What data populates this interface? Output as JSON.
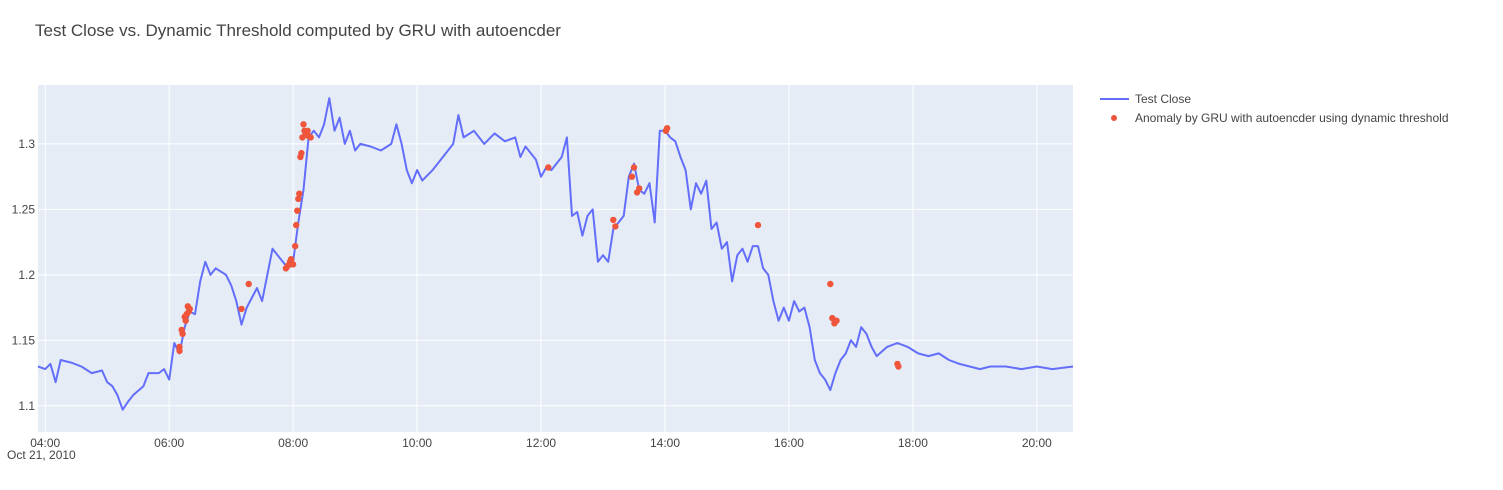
{
  "chart_data": {
    "type": "line",
    "title": "Test Close vs. Dynamic Threshold computed by GRU with autoencder",
    "xlabel": "",
    "ylabel": "",
    "x_axis": {
      "ticks": [
        "04:00",
        "06:00",
        "08:00",
        "10:00",
        "12:00",
        "14:00",
        "16:00",
        "18:00",
        "20:00"
      ],
      "date_label": "Oct 21, 2010",
      "range": [
        "03:53",
        "20:35"
      ]
    },
    "y_axis": {
      "ticks": [
        "1.1",
        "1.15",
        "1.2",
        "1.25",
        "1.3"
      ],
      "range": [
        1.08,
        1.345
      ]
    },
    "grid": true,
    "legend": {
      "placement": "top-right"
    },
    "series": [
      {
        "name": "Test Close",
        "kind": "line",
        "color": "#636efa",
        "points": [
          [
            "03:53",
            1.13
          ],
          [
            "04:00",
            1.128
          ],
          [
            "04:05",
            1.132
          ],
          [
            "04:10",
            1.118
          ],
          [
            "04:15",
            1.135
          ],
          [
            "04:25",
            1.133
          ],
          [
            "04:35",
            1.13
          ],
          [
            "04:45",
            1.125
          ],
          [
            "04:55",
            1.127
          ],
          [
            "05:00",
            1.118
          ],
          [
            "05:05",
            1.115
          ],
          [
            "05:10",
            1.108
          ],
          [
            "05:15",
            1.097
          ],
          [
            "05:20",
            1.103
          ],
          [
            "05:25",
            1.108
          ],
          [
            "05:35",
            1.115
          ],
          [
            "05:40",
            1.125
          ],
          [
            "05:50",
            1.125
          ],
          [
            "05:55",
            1.128
          ],
          [
            "06:00",
            1.12
          ],
          [
            "06:05",
            1.148
          ],
          [
            "06:10",
            1.14
          ],
          [
            "06:15",
            1.16
          ],
          [
            "06:20",
            1.172
          ],
          [
            "06:25",
            1.17
          ],
          [
            "06:30",
            1.195
          ],
          [
            "06:35",
            1.21
          ],
          [
            "06:40",
            1.2
          ],
          [
            "06:45",
            1.205
          ],
          [
            "06:55",
            1.2
          ],
          [
            "07:00",
            1.192
          ],
          [
            "07:05",
            1.18
          ],
          [
            "07:10",
            1.162
          ],
          [
            "07:15",
            1.175
          ],
          [
            "07:25",
            1.19
          ],
          [
            "07:30",
            1.18
          ],
          [
            "07:35",
            1.2
          ],
          [
            "07:40",
            1.22
          ],
          [
            "07:45",
            1.215
          ],
          [
            "07:55",
            1.205
          ],
          [
            "08:00",
            1.21
          ],
          [
            "08:05",
            1.24
          ],
          [
            "08:10",
            1.265
          ],
          [
            "08:15",
            1.305
          ],
          [
            "08:20",
            1.31
          ],
          [
            "08:25",
            1.305
          ],
          [
            "08:30",
            1.315
          ],
          [
            "08:35",
            1.335
          ],
          [
            "08:40",
            1.31
          ],
          [
            "08:45",
            1.32
          ],
          [
            "08:50",
            1.3
          ],
          [
            "08:55",
            1.31
          ],
          [
            "09:00",
            1.295
          ],
          [
            "09:05",
            1.3
          ],
          [
            "09:15",
            1.298
          ],
          [
            "09:25",
            1.295
          ],
          [
            "09:35",
            1.3
          ],
          [
            "09:40",
            1.315
          ],
          [
            "09:45",
            1.3
          ],
          [
            "09:50",
            1.28
          ],
          [
            "09:55",
            1.27
          ],
          [
            "10:00",
            1.28
          ],
          [
            "10:05",
            1.272
          ],
          [
            "10:15",
            1.28
          ],
          [
            "10:25",
            1.29
          ],
          [
            "10:35",
            1.3
          ],
          [
            "10:40",
            1.322
          ],
          [
            "10:45",
            1.305
          ],
          [
            "10:55",
            1.31
          ],
          [
            "11:05",
            1.3
          ],
          [
            "11:15",
            1.308
          ],
          [
            "11:25",
            1.302
          ],
          [
            "11:35",
            1.305
          ],
          [
            "11:40",
            1.29
          ],
          [
            "11:45",
            1.298
          ],
          [
            "11:55",
            1.288
          ],
          [
            "12:00",
            1.275
          ],
          [
            "12:05",
            1.282
          ],
          [
            "12:10",
            1.28
          ],
          [
            "12:15",
            1.285
          ],
          [
            "12:20",
            1.29
          ],
          [
            "12:25",
            1.305
          ],
          [
            "12:30",
            1.245
          ],
          [
            "12:35",
            1.248
          ],
          [
            "12:40",
            1.23
          ],
          [
            "12:45",
            1.245
          ],
          [
            "12:50",
            1.25
          ],
          [
            "12:55",
            1.21
          ],
          [
            "13:00",
            1.215
          ],
          [
            "13:05",
            1.21
          ],
          [
            "13:10",
            1.235
          ],
          [
            "13:15",
            1.24
          ],
          [
            "13:20",
            1.245
          ],
          [
            "13:25",
            1.275
          ],
          [
            "13:30",
            1.285
          ],
          [
            "13:35",
            1.265
          ],
          [
            "13:40",
            1.262
          ],
          [
            "13:45",
            1.27
          ],
          [
            "13:50",
            1.24
          ],
          [
            "13:55",
            1.31
          ],
          [
            "14:00",
            1.31
          ],
          [
            "14:05",
            1.305
          ],
          [
            "14:10",
            1.302
          ],
          [
            "14:15",
            1.29
          ],
          [
            "14:20",
            1.28
          ],
          [
            "14:25",
            1.25
          ],
          [
            "14:30",
            1.27
          ],
          [
            "14:35",
            1.262
          ],
          [
            "14:40",
            1.272
          ],
          [
            "14:45",
            1.235
          ],
          [
            "14:50",
            1.24
          ],
          [
            "14:55",
            1.22
          ],
          [
            "15:00",
            1.225
          ],
          [
            "15:05",
            1.195
          ],
          [
            "15:10",
            1.215
          ],
          [
            "15:15",
            1.22
          ],
          [
            "15:20",
            1.21
          ],
          [
            "15:25",
            1.222
          ],
          [
            "15:30",
            1.222
          ],
          [
            "15:35",
            1.205
          ],
          [
            "15:40",
            1.2
          ],
          [
            "15:45",
            1.18
          ],
          [
            "15:50",
            1.165
          ],
          [
            "15:55",
            1.175
          ],
          [
            "16:00",
            1.165
          ],
          [
            "16:05",
            1.18
          ],
          [
            "16:10",
            1.172
          ],
          [
            "16:15",
            1.175
          ],
          [
            "16:20",
            1.16
          ],
          [
            "16:25",
            1.135
          ],
          [
            "16:30",
            1.125
          ],
          [
            "16:35",
            1.12
          ],
          [
            "16:40",
            1.112
          ],
          [
            "16:45",
            1.125
          ],
          [
            "16:50",
            1.135
          ],
          [
            "16:55",
            1.14
          ],
          [
            "17:00",
            1.15
          ],
          [
            "17:05",
            1.145
          ],
          [
            "17:10",
            1.16
          ],
          [
            "17:15",
            1.155
          ],
          [
            "17:20",
            1.145
          ],
          [
            "17:25",
            1.138
          ],
          [
            "17:35",
            1.145
          ],
          [
            "17:45",
            1.148
          ],
          [
            "17:55",
            1.145
          ],
          [
            "18:05",
            1.14
          ],
          [
            "18:15",
            1.138
          ],
          [
            "18:25",
            1.14
          ],
          [
            "18:35",
            1.135
          ],
          [
            "18:45",
            1.132
          ],
          [
            "18:55",
            1.13
          ],
          [
            "19:05",
            1.128
          ],
          [
            "19:15",
            1.13
          ],
          [
            "19:30",
            1.13
          ],
          [
            "19:45",
            1.128
          ],
          [
            "20:00",
            1.13
          ],
          [
            "20:15",
            1.128
          ],
          [
            "20:35",
            1.13
          ]
        ]
      },
      {
        "name": "Anomaly by GRU with autoencder using dynamic threshold",
        "kind": "scatter",
        "color": "#ef553b",
        "points": [
          [
            "06:10",
            1.145
          ],
          [
            "06:10",
            1.142
          ],
          [
            "06:12",
            1.158
          ],
          [
            "06:13",
            1.155
          ],
          [
            "06:15",
            1.168
          ],
          [
            "06:16",
            1.165
          ],
          [
            "06:17",
            1.17
          ],
          [
            "06:18",
            1.176
          ],
          [
            "06:19",
            1.172
          ],
          [
            "06:20",
            1.174
          ],
          [
            "07:10",
            1.174
          ],
          [
            "07:17",
            1.193
          ],
          [
            "07:53",
            1.205
          ],
          [
            "07:55",
            1.207
          ],
          [
            "07:57",
            1.21
          ],
          [
            "07:58",
            1.212
          ],
          [
            "08:00",
            1.208
          ],
          [
            "08:02",
            1.222
          ],
          [
            "08:03",
            1.238
          ],
          [
            "08:04",
            1.249
          ],
          [
            "08:05",
            1.258
          ],
          [
            "08:06",
            1.262
          ],
          [
            "08:07",
            1.29
          ],
          [
            "08:08",
            1.293
          ],
          [
            "08:09",
            1.305
          ],
          [
            "08:10",
            1.315
          ],
          [
            "08:11",
            1.31
          ],
          [
            "08:12",
            1.307
          ],
          [
            "08:14",
            1.31
          ],
          [
            "08:15",
            1.306
          ],
          [
            "08:17",
            1.305
          ],
          [
            "12:07",
            1.282
          ],
          [
            "13:10",
            1.242
          ],
          [
            "13:12",
            1.237
          ],
          [
            "13:28",
            1.275
          ],
          [
            "13:30",
            1.282
          ],
          [
            "13:33",
            1.263
          ],
          [
            "13:35",
            1.266
          ],
          [
            "14:01",
            1.31
          ],
          [
            "14:02",
            1.312
          ],
          [
            "15:30",
            1.238
          ],
          [
            "16:40",
            1.193
          ],
          [
            "16:42",
            1.167
          ],
          [
            "16:44",
            1.163
          ],
          [
            "16:46",
            1.165
          ],
          [
            "17:45",
            1.132
          ],
          [
            "17:46",
            1.13
          ]
        ]
      }
    ]
  }
}
